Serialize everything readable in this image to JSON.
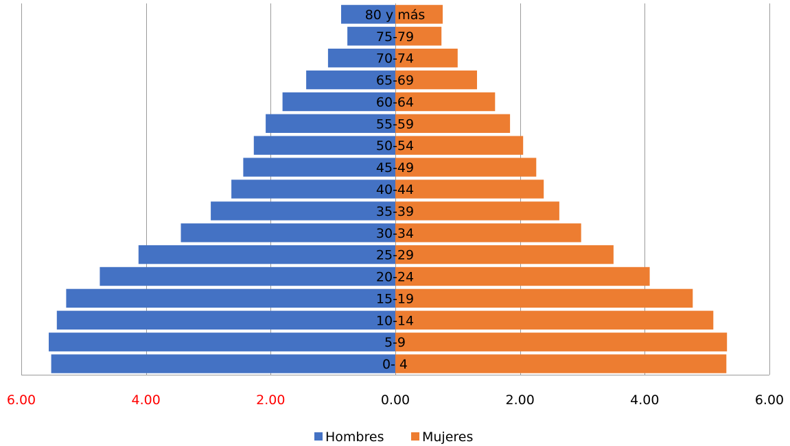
{
  "chart_data": {
    "type": "bar",
    "orientation": "horizontal-population-pyramid",
    "categories": [
      "0- 4",
      "5-9",
      "10-14",
      "15-19",
      "20-24",
      "25-29",
      "30-34",
      "35-39",
      "40-44",
      "45-49",
      "50-54",
      "55-59",
      "60-64",
      "65-69",
      "70-74",
      "75-79",
      "80 y más"
    ],
    "series": [
      {
        "name": "Hombres",
        "color": "#4472C4",
        "side": "left",
        "values": [
          5.52,
          5.56,
          5.43,
          5.28,
          4.74,
          4.12,
          3.44,
          2.96,
          2.63,
          2.44,
          2.27,
          2.08,
          1.81,
          1.43,
          1.08,
          0.77,
          0.87
        ]
      },
      {
        "name": "Mujeres",
        "color": "#ED7D31",
        "side": "right",
        "values": [
          5.31,
          5.32,
          5.1,
          4.77,
          4.08,
          3.5,
          2.98,
          2.63,
          2.38,
          2.26,
          2.05,
          1.84,
          1.6,
          1.31,
          1.0,
          0.74,
          0.76
        ]
      }
    ],
    "x_ticks": [
      "6.00",
      "4.00",
      "2.00",
      "0.00",
      "2.00",
      "4.00",
      "6.00"
    ],
    "x_tick_colors": [
      "#FF0000",
      "#FF0000",
      "#FF0000",
      "#000000",
      "#000000",
      "#000000",
      "#000000"
    ],
    "xlim": [
      -6,
      6
    ],
    "grid": true,
    "legend_position": "bottom"
  }
}
